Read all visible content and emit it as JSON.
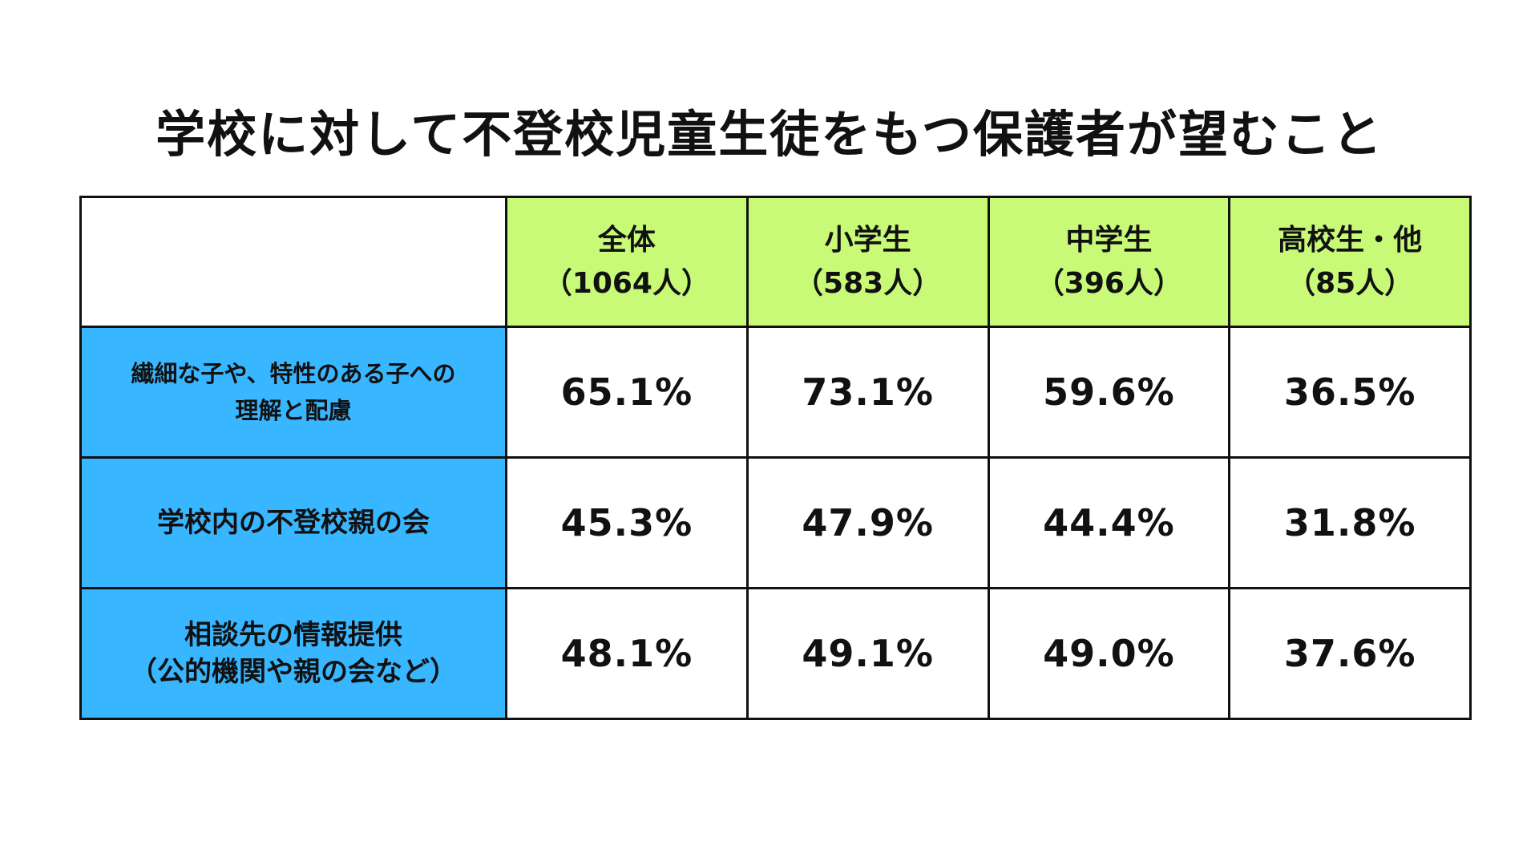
{
  "title": "学校に対して不登校児童生徒をもつ保護者が望むこと",
  "colors": {
    "header_bg": "#C8FA78",
    "row_label_bg": "#38B6FF",
    "border": "#111111",
    "text": "#111111"
  },
  "columns": [
    {
      "line1": "全体",
      "line2": "（1064人）"
    },
    {
      "line1": "小学生",
      "line2": "（583人）"
    },
    {
      "line1": "中学生",
      "line2": "（396人）"
    },
    {
      "line1": "高校生・他",
      "line2": "（85人）"
    }
  ],
  "rows": [
    {
      "label_lines": [
        "繊細な子や、特性のある子への",
        "理解と配慮"
      ],
      "values": [
        "65.1%",
        "73.1%",
        "59.6%",
        "36.5%"
      ]
    },
    {
      "label_lines": [
        "学校内の不登校親の会"
      ],
      "values": [
        "45.3%",
        "47.9%",
        "44.4%",
        "31.8%"
      ]
    },
    {
      "label_lines": [
        "相談先の情報提供",
        "（公的機関や親の会など）"
      ],
      "values": [
        "48.1%",
        "49.1%",
        "49.0%",
        "37.6%"
      ]
    }
  ],
  "chart_data": {
    "type": "table",
    "title": "学校に対して不登校児童生徒をもつ保護者が望むこと",
    "columns": [
      "全体（1064人）",
      "小学生（583人）",
      "中学生（396人）",
      "高校生・他（85人）"
    ],
    "rows": [
      {
        "label": "繊細な子や、特性のある子への理解と配慮",
        "values": [
          65.1,
          73.1,
          59.6,
          36.5
        ]
      },
      {
        "label": "学校内の不登校親の会",
        "values": [
          45.3,
          47.9,
          44.4,
          31.8
        ]
      },
      {
        "label": "相談先の情報提供（公的機関や親の会など）",
        "values": [
          48.1,
          49.1,
          49.0,
          37.6
        ]
      }
    ],
    "unit": "%"
  }
}
